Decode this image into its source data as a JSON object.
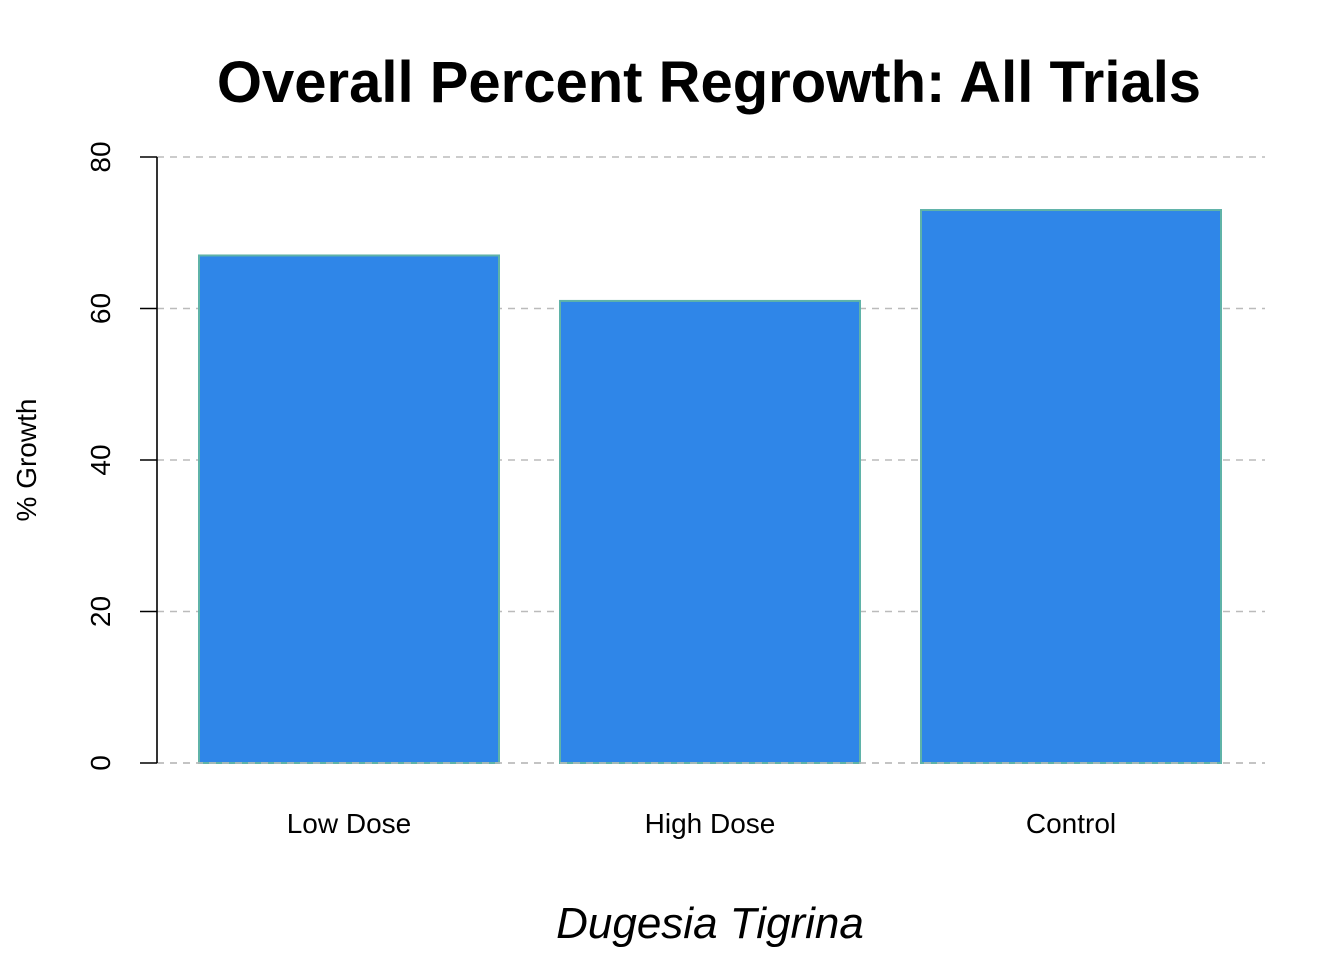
{
  "chart_data": {
    "type": "bar",
    "title": "Overall Percent Regrowth: All Trials",
    "xlabel": "Dugesia Tigrina",
    "ylabel": "% Growth",
    "categories": [
      "Low Dose",
      "High Dose",
      "Control"
    ],
    "values": [
      67,
      61,
      73
    ],
    "ylim": [
      0,
      80
    ],
    "yticks": [
      0,
      20,
      40,
      60,
      80
    ],
    "grid": true,
    "grid_style": "dashed-horizontal",
    "bar_color": "#2f86e8",
    "bar_edge_color": "#5fb3a8",
    "grid_color": "#bbbbbb"
  }
}
